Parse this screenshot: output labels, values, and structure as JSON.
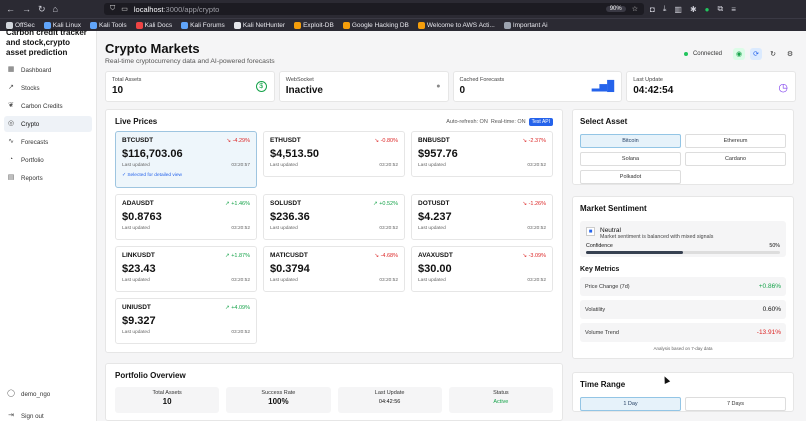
{
  "browser": {
    "url_host": "localhost",
    "url_path": ":3000/app/crypto",
    "zoom": "90%",
    "bookmarks": [
      "OffSec",
      "Kali Linux",
      "Kali Tools",
      "Kali Docs",
      "Kali Forums",
      "Kali NetHunter",
      "Exploit-DB",
      "Google Hacking DB",
      "Welcome to AWS Acti...",
      "Important Ai"
    ]
  },
  "sidebar": {
    "brand": "Carbon credit tracker and stock,crypto asset prediction",
    "items": [
      {
        "label": "Dashboard",
        "icon": "grid-icon"
      },
      {
        "label": "Stocks",
        "icon": "trend-icon"
      },
      {
        "label": "Carbon Credits",
        "icon": "leaf-icon"
      },
      {
        "label": "Crypto",
        "icon": "coin-icon",
        "active": true
      },
      {
        "label": "Forecasts",
        "icon": "forecast-icon"
      },
      {
        "label": "Portfolio",
        "icon": "portfolio-icon"
      },
      {
        "label": "Reports",
        "icon": "reports-icon"
      }
    ],
    "user": "demo_ngo",
    "signout": "Sign out"
  },
  "header": {
    "title": "Crypto Markets",
    "subtitle": "Real-time cryptocurrency data and AI-powered forecasts",
    "status": "Connected"
  },
  "stats": [
    {
      "label": "Total Assets",
      "value": "10"
    },
    {
      "label": "WebSocket",
      "value": "Inactive"
    },
    {
      "label": "Cached Forecasts",
      "value": "0"
    },
    {
      "label": "Last Update",
      "value": "04:42:54"
    }
  ],
  "live": {
    "title": "Live Prices",
    "auto_refresh": "Auto-refresh: ON",
    "realtime": "Real-time: ON",
    "test_api": "Test API",
    "last_updated_label": "Last updated",
    "selected_note": "✓ Selected for detailed view",
    "cards": [
      {
        "symbol": "BTCUSDT",
        "change": "-4.29%",
        "dir": "neg",
        "price": "$116,703.06",
        "time": "03:20:57",
        "selected": true
      },
      {
        "symbol": "ETHUSDT",
        "change": "-0.80%",
        "dir": "neg",
        "price": "$4,513.50",
        "time": "03:20:52"
      },
      {
        "symbol": "BNBUSDT",
        "change": "-2.37%",
        "dir": "neg",
        "price": "$957.76",
        "time": "03:20:52"
      },
      {
        "symbol": "ADAUSDT",
        "change": "+1.46%",
        "dir": "pos",
        "price": "$0.8763",
        "time": "03:20:52"
      },
      {
        "symbol": "SOLUSDT",
        "change": "+0.52%",
        "dir": "pos",
        "price": "$236.36",
        "time": "03:20:52"
      },
      {
        "symbol": "DOTUSDT",
        "change": "-1.26%",
        "dir": "neg",
        "price": "$4.237",
        "time": "03:20:52"
      },
      {
        "symbol": "LINKUSDT",
        "change": "+1.87%",
        "dir": "pos",
        "price": "$23.43",
        "time": "03:20:52"
      },
      {
        "symbol": "MATICUSDT",
        "change": "-4.68%",
        "dir": "neg",
        "price": "$0.3794",
        "time": "03:20:52"
      },
      {
        "symbol": "AVAXUSDT",
        "change": "-3.09%",
        "dir": "neg",
        "price": "$30.00",
        "time": "03:20:52"
      },
      {
        "symbol": "UNIUSDT",
        "change": "+4.09%",
        "dir": "pos",
        "price": "$9.327",
        "time": "03:20:52"
      }
    ]
  },
  "portfolio": {
    "title": "Portfolio Overview",
    "stats": [
      {
        "label": "Total Assets",
        "value": "10"
      },
      {
        "label": "Success Rate",
        "value": "100%"
      },
      {
        "label": "Last Update",
        "value": "04:42:56"
      },
      {
        "label": "Status",
        "value": "Active"
      }
    ]
  },
  "select_asset": {
    "title": "Select Asset",
    "options": [
      "Bitcoin",
      "Ethereum",
      "Solana",
      "Cardano",
      "Polkadot"
    ],
    "selected": "Bitcoin"
  },
  "sentiment": {
    "title": "Market Sentiment",
    "state": "Neutral",
    "desc": "Market sentiment is balanced with mixed signals",
    "confidence_label": "Confidence",
    "confidence_value": "50%",
    "confidence": 0.5,
    "key_metrics": "Key Metrics",
    "metrics": [
      {
        "label": "Price Change (7d)",
        "value": "+0.86%",
        "dir": "pos"
      },
      {
        "label": "Volatility",
        "value": "0.60%",
        "dir": ""
      },
      {
        "label": "Volume Trend",
        "value": "-13.91%",
        "dir": "neg"
      }
    ],
    "note": "Analysis based on 7-day data"
  },
  "time_range": {
    "title": "Time Range",
    "options": [
      "1 Day",
      "7 Days"
    ],
    "selected": "1 Day"
  }
}
